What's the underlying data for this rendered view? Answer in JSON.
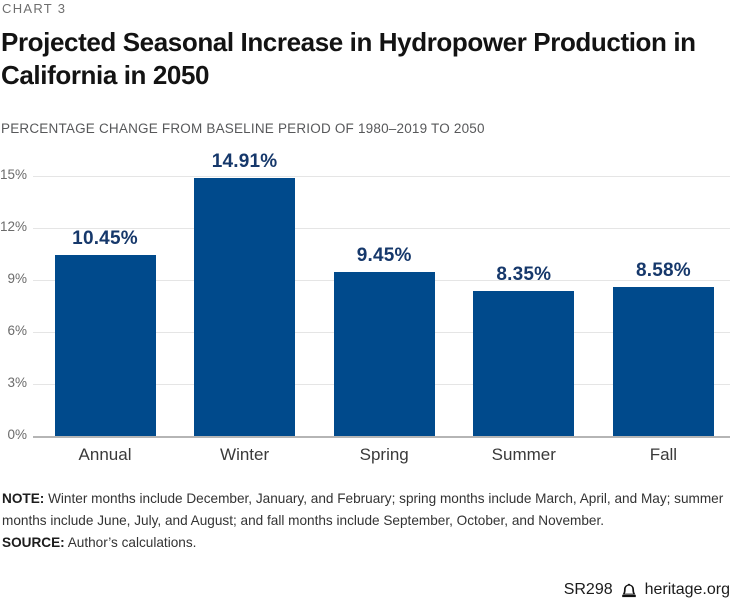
{
  "kicker": "CHART 3",
  "title": "Projected Seasonal Increase in Hydropower Production in California in 2050",
  "subtitle": "PERCENTAGE CHANGE FROM BASELINE PERIOD OF 1980–2019 TO 2050",
  "chart_data": {
    "type": "bar",
    "categories": [
      "Annual",
      "Winter",
      "Spring",
      "Summer",
      "Fall"
    ],
    "values": [
      10.45,
      14.91,
      9.45,
      8.35,
      8.58
    ],
    "value_labels": [
      "10.45%",
      "14.91%",
      "9.45%",
      "8.35%",
      "8.58%"
    ],
    "xlabel": "",
    "ylabel": "",
    "ylim": [
      0,
      15
    ],
    "yticks": [
      0,
      3,
      6,
      9,
      12,
      15
    ],
    "ytick_labels": [
      "0%",
      "3%",
      "6%",
      "9%",
      "12%",
      "15%"
    ],
    "grid": true,
    "legend": false,
    "bar_color": "#004a8c",
    "value_label_color": "#16386b",
    "gridline_color": "#e5e5e5",
    "baseline_color": "#b5b5b5"
  },
  "note": {
    "label": "NOTE:",
    "text": "Winter months include December, January, and February; spring months include March, April, and May; summer months include June, July, and August; and fall months include September, October, and November."
  },
  "source": {
    "label": "SOURCE:",
    "text": "Author’s calculations."
  },
  "footer": {
    "report_id": "SR298",
    "site": "heritage.org"
  }
}
